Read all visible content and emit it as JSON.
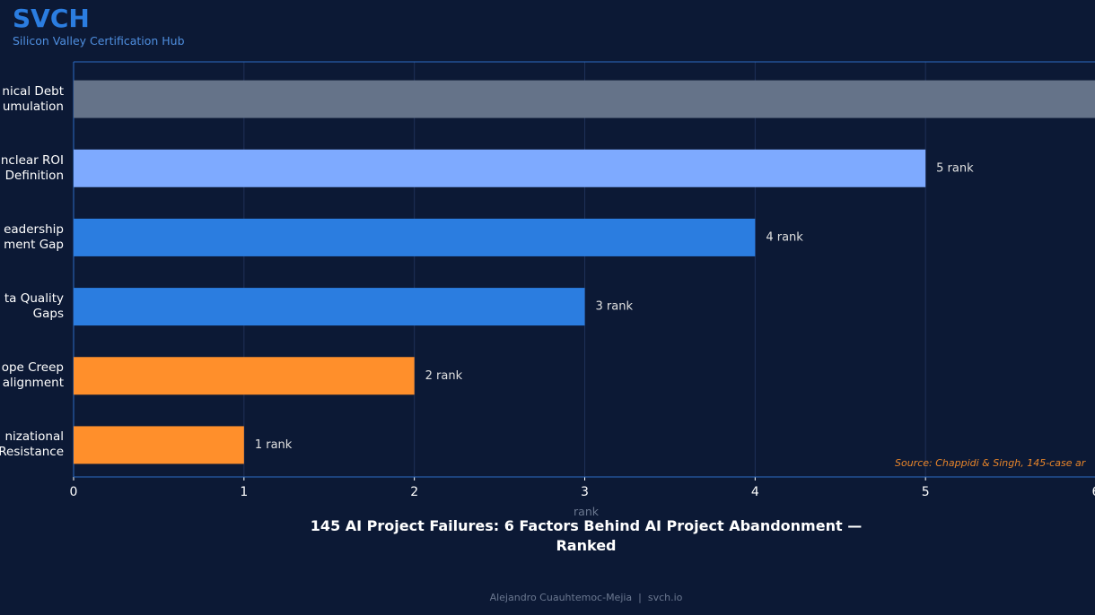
{
  "header": {
    "brand": "SVCH",
    "subtitle": "Silicon Valley Certification Hub"
  },
  "chart_data": {
    "type": "bar",
    "orientation": "horizontal",
    "title": "145 AI Project Failures: 6 Factors Behind AI Project Abandonment — Ranked",
    "xlabel": "rank",
    "categories": [
      "nical Debt\numulation",
      "nclear ROI\nDefinition",
      "eadership\nment Gap",
      "ta Quality\nGaps",
      "ope Creep\nalignment",
      "nizational\nResistance"
    ],
    "values": [
      6,
      5,
      4,
      3,
      2,
      1
    ],
    "value_labels": [
      null,
      "5 rank",
      "4 rank",
      "3 rank",
      "2 rank",
      "1 rank"
    ],
    "colors": [
      "#657389",
      "#7eaaff",
      "#2b7de0",
      "#2b7de0",
      "#ff8f2b",
      "#ff8f2b"
    ],
    "xlim": [
      0,
      6
    ],
    "xticks": [
      0,
      1,
      2,
      3,
      4,
      5,
      6
    ],
    "grid": true,
    "annotation": "Source: Chappidi & Singh, 145-case ar"
  },
  "footer": "Alejandro Cuauhtemoc-Mejia  |  svch.io"
}
